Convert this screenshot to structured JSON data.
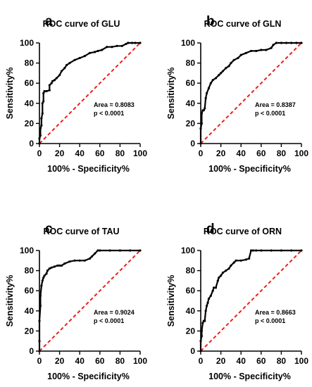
{
  "chart_data": [
    {
      "type": "line",
      "panel_letter": "a",
      "title": "ROC curve of GLU",
      "xlabel": "100% - Specificity%",
      "ylabel": "Sensitivity%",
      "xlim": [
        0,
        100
      ],
      "ylim": [
        0,
        100
      ],
      "xticks": [
        0,
        20,
        40,
        60,
        80,
        100
      ],
      "yticks": [
        0,
        20,
        40,
        60,
        80,
        100
      ],
      "area_text": "Area = 0.8083",
      "p_text": "p < 0.0001",
      "colors": {
        "roc": "#000000",
        "reference": "#e8231d"
      },
      "series": [
        {
          "values_x": [
            0,
            0,
            1,
            1,
            2,
            2,
            3,
            3,
            4,
            4,
            5,
            5,
            7,
            10,
            10,
            12,
            13,
            15,
            17,
            20,
            22,
            25,
            27,
            30,
            35,
            40,
            45,
            50,
            55,
            58,
            62,
            67,
            72,
            77,
            82,
            86,
            88,
            92,
            95,
            100
          ],
          "values_y": [
            0,
            5,
            8,
            15,
            18,
            25,
            30,
            40,
            42,
            50,
            52,
            52,
            52,
            53,
            58,
            60,
            62,
            63,
            65,
            68,
            72,
            75,
            78,
            80,
            83,
            85,
            87,
            90,
            91,
            92,
            93,
            96,
            96,
            97,
            97,
            99,
            100,
            100,
            100,
            100
          ]
        },
        {
          "values_x": [
            0,
            100
          ],
          "values_y": [
            0,
            100
          ]
        }
      ]
    },
    {
      "type": "line",
      "panel_letter": "b",
      "title": "ROC curve of GLN",
      "xlabel": "100% - Specificity%",
      "ylabel": "Sensitivity%",
      "xlim": [
        0,
        100
      ],
      "ylim": [
        0,
        100
      ],
      "xticks": [
        0,
        20,
        40,
        60,
        80,
        100
      ],
      "yticks": [
        0,
        20,
        40,
        60,
        80,
        100
      ],
      "area_text": "Area = 0.8387",
      "p_text": "p < 0.0001",
      "colors": {
        "roc": "#000000",
        "reference": "#e8231d"
      },
      "series": [
        {
          "values_x": [
            0,
            0,
            1,
            1,
            2,
            3,
            4,
            5,
            6,
            8,
            10,
            12,
            15,
            18,
            20,
            22,
            25,
            28,
            30,
            33,
            37,
            40,
            45,
            50,
            55,
            60,
            65,
            70,
            72,
            75,
            80,
            85,
            90,
            95,
            100
          ],
          "values_y": [
            0,
            15,
            20,
            30,
            33,
            33,
            35,
            45,
            50,
            55,
            60,
            63,
            65,
            68,
            70,
            72,
            75,
            77,
            80,
            83,
            85,
            88,
            90,
            92,
            92,
            93,
            93,
            95,
            98,
            100,
            100,
            100,
            100,
            100,
            100
          ]
        },
        {
          "values_x": [
            0,
            100
          ],
          "values_y": [
            0,
            100
          ]
        }
      ]
    },
    {
      "type": "line",
      "panel_letter": "c",
      "title": "ROC curve of TAU",
      "xlabel": "100% - Specificity%",
      "ylabel": "Sensitivity%",
      "xlim": [
        0,
        100
      ],
      "ylim": [
        0,
        100
      ],
      "xticks": [
        0,
        20,
        40,
        60,
        80,
        100
      ],
      "yticks": [
        0,
        20,
        40,
        60,
        80,
        100
      ],
      "area_text": "Area = 0.9024",
      "p_text": "p < 0.0001",
      "colors": {
        "roc": "#000000",
        "reference": "#e8231d"
      },
      "series": [
        {
          "values_x": [
            0,
            0,
            0,
            1,
            1,
            2,
            3,
            4,
            5,
            7,
            8,
            10,
            12,
            15,
            18,
            20,
            22,
            25,
            30,
            35,
            40,
            45,
            50,
            52,
            55,
            58,
            60,
            70,
            80,
            90,
            100
          ],
          "values_y": [
            0,
            10,
            30,
            45,
            55,
            65,
            70,
            73,
            75,
            77,
            80,
            82,
            83,
            84,
            85,
            85,
            85,
            87,
            89,
            90,
            90,
            90,
            92,
            94,
            97,
            100,
            100,
            100,
            100,
            100,
            100
          ]
        },
        {
          "values_x": [
            0,
            100
          ],
          "values_y": [
            0,
            100
          ]
        }
      ]
    },
    {
      "type": "line",
      "panel_letter": "d",
      "title": "ROC curve of ORN",
      "xlabel": "100% - Specificity%",
      "ylabel": "Sensitivity%",
      "xlim": [
        0,
        100
      ],
      "ylim": [
        0,
        100
      ],
      "xticks": [
        0,
        20,
        40,
        60,
        80,
        100
      ],
      "yticks": [
        0,
        20,
        40,
        60,
        80,
        100
      ],
      "area_text": "Area = 0.8663",
      "p_text": "p < 0.0001",
      "colors": {
        "roc": "#000000",
        "reference": "#e8231d"
      },
      "series": [
        {
          "values_x": [
            0,
            0,
            1,
            1,
            2,
            3,
            4,
            5,
            6,
            7,
            8,
            10,
            12,
            13,
            15,
            17,
            18,
            20,
            22,
            25,
            28,
            30,
            33,
            35,
            40,
            45,
            48,
            50,
            52,
            55,
            60,
            70,
            80,
            90,
            100
          ],
          "values_y": [
            0,
            10,
            15,
            20,
            28,
            30,
            30,
            40,
            45,
            48,
            52,
            55,
            60,
            63,
            63,
            70,
            73,
            75,
            78,
            80,
            82,
            85,
            88,
            90,
            90,
            91,
            92,
            100,
            100,
            100,
            100,
            100,
            100,
            100,
            100
          ]
        },
        {
          "values_x": [
            0,
            100
          ],
          "values_y": [
            0,
            100
          ]
        }
      ]
    }
  ]
}
